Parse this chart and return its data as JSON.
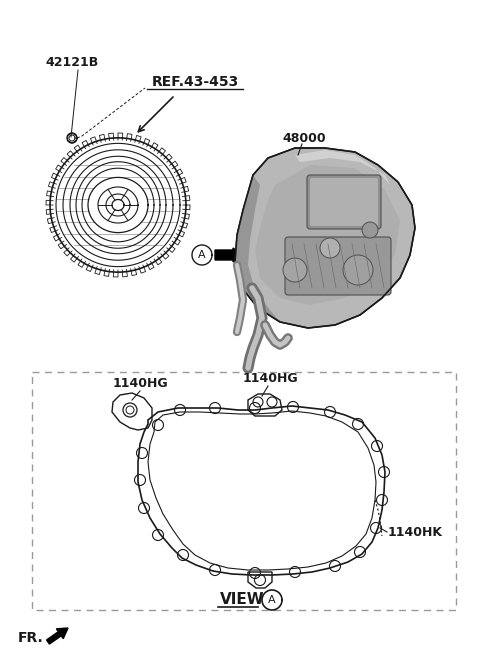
{
  "bg_color": "#ffffff",
  "label_42121B": "42121B",
  "label_ref": "REF.43-453",
  "label_48000": "48000",
  "label_1140HG_left": "1140HG",
  "label_1140HG_right": "1140HG",
  "label_1140HK": "1140HK",
  "label_view": "VIEW",
  "label_A": "A",
  "label_fr": "FR.",
  "text_color": "#1a1a1a",
  "line_color": "#1a1a1a",
  "dashed_color": "#888888",
  "gray_fill": "#aaaaaa",
  "light_gray": "#cccccc"
}
